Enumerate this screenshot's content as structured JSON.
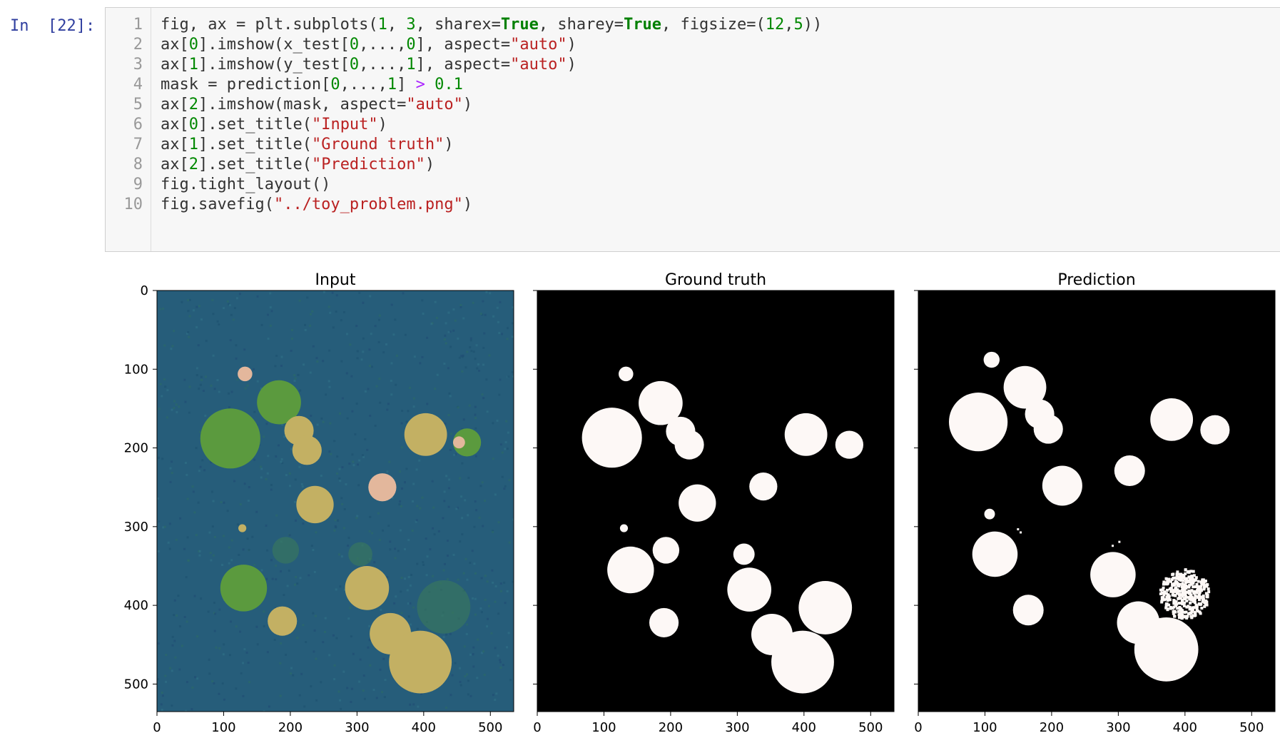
{
  "cell": {
    "prompt": "In  [22]:",
    "line_numbers": [
      "1",
      "2",
      "3",
      "4",
      "5",
      "6",
      "7",
      "8",
      "9",
      "10"
    ],
    "code_lines": [
      [
        [
          "txt",
          "fig, ax = plt.subplots("
        ],
        [
          "num",
          "1"
        ],
        [
          "txt",
          ", "
        ],
        [
          "num",
          "3"
        ],
        [
          "txt",
          ", sharex="
        ],
        [
          "kw",
          "True"
        ],
        [
          "txt",
          ", sharey="
        ],
        [
          "kw",
          "True"
        ],
        [
          "txt",
          ", figsize=("
        ],
        [
          "num",
          "12"
        ],
        [
          "txt",
          ","
        ],
        [
          "num",
          "5"
        ],
        [
          "txt",
          "))"
        ]
      ],
      [
        [
          "txt",
          "ax["
        ],
        [
          "num",
          "0"
        ],
        [
          "txt",
          "].imshow(x_test["
        ],
        [
          "num",
          "0"
        ],
        [
          "txt",
          ",...,"
        ],
        [
          "num",
          "0"
        ],
        [
          "txt",
          "], aspect="
        ],
        [
          "str",
          "\"auto\""
        ],
        [
          "txt",
          ")"
        ]
      ],
      [
        [
          "txt",
          "ax["
        ],
        [
          "num",
          "1"
        ],
        [
          "txt",
          "].imshow(y_test["
        ],
        [
          "num",
          "0"
        ],
        [
          "txt",
          ",...,"
        ],
        [
          "num",
          "1"
        ],
        [
          "txt",
          "], aspect="
        ],
        [
          "str",
          "\"auto\""
        ],
        [
          "txt",
          ")"
        ]
      ],
      [
        [
          "txt",
          "mask = prediction["
        ],
        [
          "num",
          "0"
        ],
        [
          "txt",
          ",...,"
        ],
        [
          "num",
          "1"
        ],
        [
          "txt",
          "] "
        ],
        [
          "op",
          ">"
        ],
        [
          "txt",
          " "
        ],
        [
          "num",
          "0.1"
        ]
      ],
      [
        [
          "txt",
          "ax["
        ],
        [
          "num",
          "2"
        ],
        [
          "txt",
          "].imshow(mask, aspect="
        ],
        [
          "str",
          "\"auto\""
        ],
        [
          "txt",
          ")"
        ]
      ],
      [
        [
          "txt",
          "ax["
        ],
        [
          "num",
          "0"
        ],
        [
          "txt",
          "].set_title("
        ],
        [
          "str",
          "\"Input\""
        ],
        [
          "txt",
          ")"
        ]
      ],
      [
        [
          "txt",
          "ax["
        ],
        [
          "num",
          "1"
        ],
        [
          "txt",
          "].set_title("
        ],
        [
          "str",
          "\"Ground truth\""
        ],
        [
          "txt",
          ")"
        ]
      ],
      [
        [
          "txt",
          "ax["
        ],
        [
          "num",
          "2"
        ],
        [
          "txt",
          "].set_title("
        ],
        [
          "str",
          "\"Prediction\""
        ],
        [
          "txt",
          ")"
        ]
      ],
      [
        [
          "txt",
          "fig.tight_layout()"
        ]
      ],
      [
        [
          "txt",
          "fig.savefig("
        ],
        [
          "str",
          "\"../toy_problem.png\""
        ],
        [
          "txt",
          ")"
        ]
      ]
    ]
  },
  "colors": {
    "prompt": "#303f9f",
    "input_bg": "#f7f7f7",
    "input_panel_bg": "#265d7a",
    "green_blob": "#5b9a3e",
    "tan_blob": "#c3b063",
    "pink_blob": "#e3b79c",
    "dim_blob": "#3a7a5a",
    "mask_fg": "#fdf8f6",
    "mask_bg": "#000000"
  },
  "output": {
    "panel_titles": [
      "Input",
      "Ground truth",
      "Prediction"
    ],
    "xticks": [
      "0",
      "100",
      "200",
      "300",
      "400",
      "500"
    ],
    "yticks": [
      "0",
      "100",
      "200",
      "300",
      "400",
      "500"
    ],
    "xlim": [
      0,
      535
    ],
    "ylim": [
      535,
      0
    ],
    "input_circles": [
      {
        "cx": 110,
        "cy": 188,
        "r": 45,
        "fill": "green_blob"
      },
      {
        "cx": 183,
        "cy": 142,
        "r": 33,
        "fill": "green_blob"
      },
      {
        "cx": 130,
        "cy": 378,
        "r": 35,
        "fill": "green_blob"
      },
      {
        "cx": 465,
        "cy": 193,
        "r": 21,
        "fill": "green_blob"
      },
      {
        "cx": 188,
        "cy": 420,
        "r": 22,
        "fill": "tan_blob"
      },
      {
        "cx": 213,
        "cy": 178,
        "r": 22,
        "fill": "tan_blob"
      },
      {
        "cx": 225,
        "cy": 203,
        "r": 22,
        "fill": "tan_blob"
      },
      {
        "cx": 237,
        "cy": 272,
        "r": 28,
        "fill": "tan_blob"
      },
      {
        "cx": 403,
        "cy": 183,
        "r": 32,
        "fill": "tan_blob"
      },
      {
        "cx": 315,
        "cy": 378,
        "r": 33,
        "fill": "tan_blob"
      },
      {
        "cx": 350,
        "cy": 436,
        "r": 31,
        "fill": "tan_blob"
      },
      {
        "cx": 395,
        "cy": 472,
        "r": 47,
        "fill": "tan_blob"
      },
      {
        "cx": 338,
        "cy": 250,
        "r": 21,
        "fill": "pink_blob"
      },
      {
        "cx": 132,
        "cy": 106,
        "r": 11,
        "fill": "pink_blob"
      },
      {
        "cx": 453,
        "cy": 193,
        "r": 9,
        "fill": "pink_blob"
      },
      {
        "cx": 128,
        "cy": 302,
        "r": 6,
        "fill": "tan_blob"
      },
      {
        "cx": 430,
        "cy": 402,
        "r": 40,
        "fill": "dim_blob"
      },
      {
        "cx": 193,
        "cy": 330,
        "r": 20,
        "fill": "dim_blob"
      },
      {
        "cx": 305,
        "cy": 335,
        "r": 18,
        "fill": "dim_blob"
      }
    ],
    "truth_circles": [
      {
        "cx": 133,
        "cy": 106,
        "r": 11
      },
      {
        "cx": 112,
        "cy": 187,
        "r": 45
      },
      {
        "cx": 185,
        "cy": 143,
        "r": 33
      },
      {
        "cx": 215,
        "cy": 179,
        "r": 22
      },
      {
        "cx": 228,
        "cy": 196,
        "r": 22
      },
      {
        "cx": 240,
        "cy": 270,
        "r": 28
      },
      {
        "cx": 403,
        "cy": 183,
        "r": 32
      },
      {
        "cx": 468,
        "cy": 196,
        "r": 21
      },
      {
        "cx": 339,
        "cy": 249,
        "r": 21
      },
      {
        "cx": 130,
        "cy": 302,
        "r": 6
      },
      {
        "cx": 193,
        "cy": 330,
        "r": 20
      },
      {
        "cx": 140,
        "cy": 355,
        "r": 35
      },
      {
        "cx": 310,
        "cy": 335,
        "r": 16
      },
      {
        "cx": 318,
        "cy": 380,
        "r": 33
      },
      {
        "cx": 190,
        "cy": 422,
        "r": 22
      },
      {
        "cx": 352,
        "cy": 437,
        "r": 31
      },
      {
        "cx": 432,
        "cy": 403,
        "r": 40
      },
      {
        "cx": 398,
        "cy": 472,
        "r": 47
      }
    ],
    "pred_circles": [
      {
        "cx": 110,
        "cy": 88,
        "r": 12
      },
      {
        "cx": 90,
        "cy": 167,
        "r": 44
      },
      {
        "cx": 160,
        "cy": 123,
        "r": 32
      },
      {
        "cx": 182,
        "cy": 157,
        "r": 22
      },
      {
        "cx": 195,
        "cy": 176,
        "r": 22
      },
      {
        "cx": 216,
        "cy": 248,
        "r": 30
      },
      {
        "cx": 380,
        "cy": 164,
        "r": 32
      },
      {
        "cx": 445,
        "cy": 177,
        "r": 22
      },
      {
        "cx": 317,
        "cy": 229,
        "r": 23
      },
      {
        "cx": 107,
        "cy": 284,
        "r": 8
      },
      {
        "cx": 115,
        "cy": 335,
        "r": 34
      },
      {
        "cx": 165,
        "cy": 406,
        "r": 23
      },
      {
        "cx": 292,
        "cy": 361,
        "r": 34
      },
      {
        "cx": 330,
        "cy": 422,
        "r": 32
      },
      {
        "cx": 372,
        "cy": 456,
        "r": 48
      }
    ],
    "pred_noise": {
      "cx": 400,
      "cy": 386,
      "r": 37
    }
  }
}
